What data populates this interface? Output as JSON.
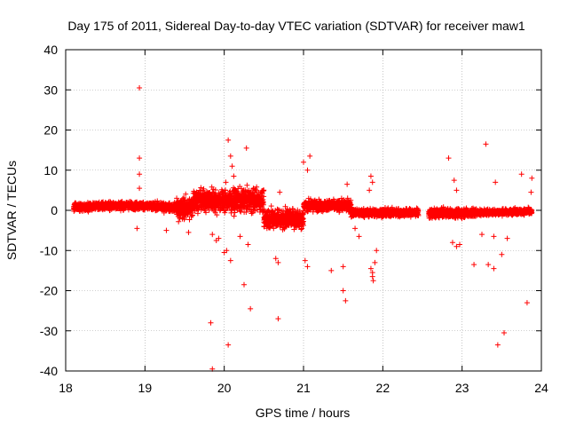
{
  "chart_data": {
    "type": "scatter",
    "title": "Day 175 of 2011, Sidereal Day-to-day VTEC variation (SDTVAR) for receiver maw1",
    "xlabel": "GPS time / hours",
    "ylabel": "SDTVAR / TECUs",
    "xlim": [
      18,
      24
    ],
    "ylim": [
      -40,
      40
    ],
    "xticks": [
      "18",
      "19",
      "20",
      "21",
      "22",
      "23",
      "24"
    ],
    "yticks": [
      "40",
      "30",
      "20",
      "10",
      "0",
      "-10",
      "-20",
      "-30",
      "-40"
    ],
    "grid": true,
    "marker": "+",
    "marker_color": "#ff0000",
    "series": [
      {
        "name": "SDTVAR",
        "outliers": [
          [
            18.93,
            30.5
          ],
          [
            18.93,
            13.0
          ],
          [
            18.93,
            9.0
          ],
          [
            18.93,
            5.5
          ],
          [
            18.9,
            -4.5
          ],
          [
            19.27,
            -5.0
          ],
          [
            19.55,
            -5.5
          ],
          [
            19.83,
            -28.0
          ],
          [
            19.85,
            -39.5
          ],
          [
            19.85,
            -6.0
          ],
          [
            19.9,
            -7.5
          ],
          [
            19.93,
            -7.0
          ],
          [
            20.0,
            -10.5
          ],
          [
            20.03,
            -10.0
          ],
          [
            20.08,
            -12.5
          ],
          [
            20.05,
            -33.5
          ],
          [
            20.05,
            17.5
          ],
          [
            20.08,
            13.5
          ],
          [
            20.1,
            11.0
          ],
          [
            20.12,
            8.5
          ],
          [
            20.02,
            7.0
          ],
          [
            20.28,
            15.5
          ],
          [
            20.25,
            -18.5
          ],
          [
            20.33,
            -24.5
          ],
          [
            20.2,
            -6.5
          ],
          [
            20.3,
            -8.5
          ],
          [
            20.37,
            5.5
          ],
          [
            20.5,
            -4.0
          ],
          [
            20.65,
            -12.0
          ],
          [
            20.68,
            -13.0
          ],
          [
            20.68,
            -27.0
          ],
          [
            20.7,
            4.5
          ],
          [
            21.0,
            12.0
          ],
          [
            21.05,
            10.0
          ],
          [
            21.08,
            13.5
          ],
          [
            21.02,
            -12.5
          ],
          [
            21.05,
            -14.0
          ],
          [
            21.35,
            -15.0
          ],
          [
            21.5,
            -20.0
          ],
          [
            21.53,
            -22.5
          ],
          [
            21.5,
            -14.0
          ],
          [
            21.55,
            6.5
          ],
          [
            21.7,
            -6.5
          ],
          [
            21.65,
            -4.5
          ],
          [
            21.85,
            8.5
          ],
          [
            21.87,
            7.0
          ],
          [
            21.83,
            5.0
          ],
          [
            21.85,
            -14.5
          ],
          [
            21.87,
            -16.5
          ],
          [
            21.88,
            -17.5
          ],
          [
            21.87,
            -15.5
          ],
          [
            21.9,
            -13.0
          ],
          [
            21.92,
            -10.0
          ],
          [
            22.83,
            13.0
          ],
          [
            22.9,
            7.5
          ],
          [
            22.93,
            5.0
          ],
          [
            22.88,
            -8.0
          ],
          [
            22.93,
            -9.0
          ],
          [
            22.97,
            -8.5
          ],
          [
            23.15,
            -13.5
          ],
          [
            23.3,
            16.5
          ],
          [
            23.33,
            -13.5
          ],
          [
            23.4,
            -14.5
          ],
          [
            23.42,
            7.0
          ],
          [
            23.25,
            -6.0
          ],
          [
            23.4,
            -6.5
          ],
          [
            23.45,
            -33.5
          ],
          [
            23.5,
            -11.0
          ],
          [
            23.53,
            -30.5
          ],
          [
            23.57,
            -7.0
          ],
          [
            23.75,
            9.0
          ],
          [
            23.82,
            -23.0
          ],
          [
            23.88,
            8.0
          ],
          [
            23.87,
            4.5
          ]
        ]
      }
    ]
  }
}
